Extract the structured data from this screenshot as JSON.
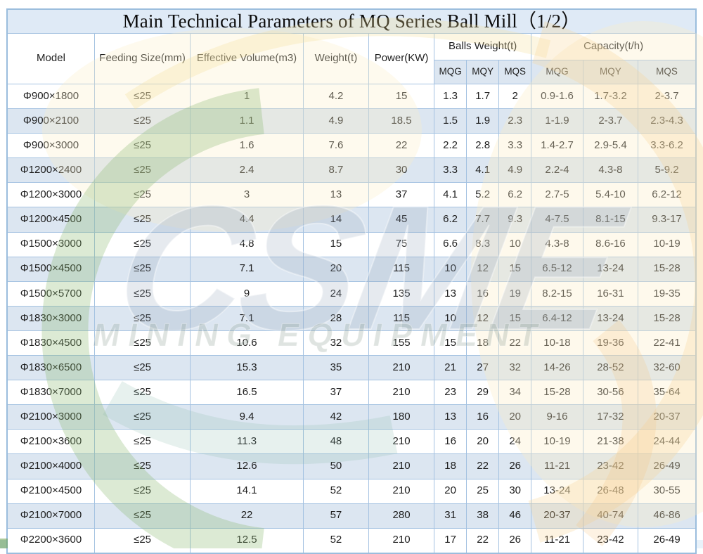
{
  "title": "Main Technical Parameters of MQ Series Ball Mill（1/2）",
  "table": {
    "headers": {
      "model": "Model",
      "feeding_size": "Feeding Size(mm)",
      "effective_volume": "Effective Volume(m3)",
      "weight": "Weight(t)",
      "power": "Power(KW)",
      "balls_weight": "Balls Weight(t)",
      "capacity": "Capacity(t/h)",
      "sub": [
        "MQG",
        "MQY",
        "MQS",
        "MQG",
        "MQY",
        "MQS"
      ]
    },
    "rows": [
      [
        "Φ900×1800",
        "≤25",
        "1",
        "4.2",
        "15",
        "1.3",
        "1.7",
        "2",
        "0.9-1.6",
        "1.7-3.2",
        "2-3.7"
      ],
      [
        "Φ900×2100",
        "≤25",
        "1.1",
        "4.9",
        "18.5",
        "1.5",
        "1.9",
        "2.3",
        "1-1.9",
        "2-3.7",
        "2.3-4.3"
      ],
      [
        "Φ900×3000",
        "≤25",
        "1.6",
        "7.6",
        "22",
        "2.2",
        "2.8",
        "3.3",
        "1.4-2.7",
        "2.9-5.4",
        "3.3-6.2"
      ],
      [
        "Φ1200×2400",
        "≤25",
        "2.4",
        "8.7",
        "30",
        "3.3",
        "4.1",
        "4.9",
        "2.2-4",
        "4.3-8",
        "5-9.2"
      ],
      [
        "Φ1200×3000",
        "≤25",
        "3",
        "13",
        "37",
        "4.1",
        "5.2",
        "6.2",
        "2.7-5",
        "5.4-10",
        "6.2-12"
      ],
      [
        "Φ1200×4500",
        "≤25",
        "4.4",
        "14",
        "45",
        "6.2",
        "7.7",
        "9.3",
        "4-7.5",
        "8.1-15",
        "9.3-17"
      ],
      [
        "Φ1500×3000",
        "≤25",
        "4.8",
        "15",
        "75",
        "6.6",
        "8.3",
        "10",
        "4.3-8",
        "8.6-16",
        "10-19"
      ],
      [
        "Φ1500×4500",
        "≤25",
        "7.1",
        "20",
        "115",
        "10",
        "12",
        "15",
        "6.5-12",
        "13-24",
        "15-28"
      ],
      [
        "Φ1500×5700",
        "≤25",
        "9",
        "24",
        "135",
        "13",
        "16",
        "19",
        "8.2-15",
        "16-31",
        "19-35"
      ],
      [
        "Φ1830×3000",
        "≤25",
        "7.1",
        "28",
        "115",
        "10",
        "12",
        "15",
        "6.4-12",
        "13-24",
        "15-28"
      ],
      [
        "Φ1830×4500",
        "≤25",
        "10.6",
        "32",
        "155",
        "15",
        "18",
        "22",
        "10-18",
        "19-36",
        "22-41"
      ],
      [
        "Φ1830×6500",
        "≤25",
        "15.3",
        "35",
        "210",
        "21",
        "27",
        "32",
        "14-26",
        "28-52",
        "32-60"
      ],
      [
        "Φ1830×7000",
        "≤25",
        "16.5",
        "37",
        "210",
        "23",
        "29",
        "34",
        "15-28",
        "30-56",
        "35-64"
      ],
      [
        "Φ2100×3000",
        "≤25",
        "9.4",
        "42",
        "180",
        "13",
        "16",
        "20",
        "9-16",
        "17-32",
        "20-37"
      ],
      [
        "Φ2100×3600",
        "≤25",
        "11.3",
        "48",
        "210",
        "16",
        "20",
        "24",
        "10-19",
        "21-38",
        "24-44"
      ],
      [
        "Φ2100×4000",
        "≤25",
        "12.6",
        "50",
        "210",
        "18",
        "22",
        "26",
        "11-21",
        "23-42",
        "26-49"
      ],
      [
        "Φ2100×4500",
        "≤25",
        "14.1",
        "52",
        "210",
        "20",
        "25",
        "30",
        "13-24",
        "26-48",
        "30-55"
      ],
      [
        "Φ2100×7000",
        "≤25",
        "22",
        "57",
        "280",
        "31",
        "38",
        "46",
        "20-37",
        "40-74",
        "46-86"
      ],
      [
        "Φ2200×3600",
        "≤25",
        "12.5",
        "52",
        "210",
        "17",
        "22",
        "26",
        "11-21",
        "23-42",
        "26-49"
      ]
    ]
  },
  "watermark": {
    "letters": "CSME",
    "text": "MINING EQUIPMENT"
  },
  "colors": {
    "row_alt": "#dce6f1",
    "border": "#a4c2e1",
    "outer_border": "#9bbddd",
    "title_bg": "#dfeaf6",
    "bottom_band": "#cfe0ef",
    "watermark_green": "#8bb872",
    "watermark_orange": "#f7d592",
    "watermark_gray": "#96a8bc"
  }
}
